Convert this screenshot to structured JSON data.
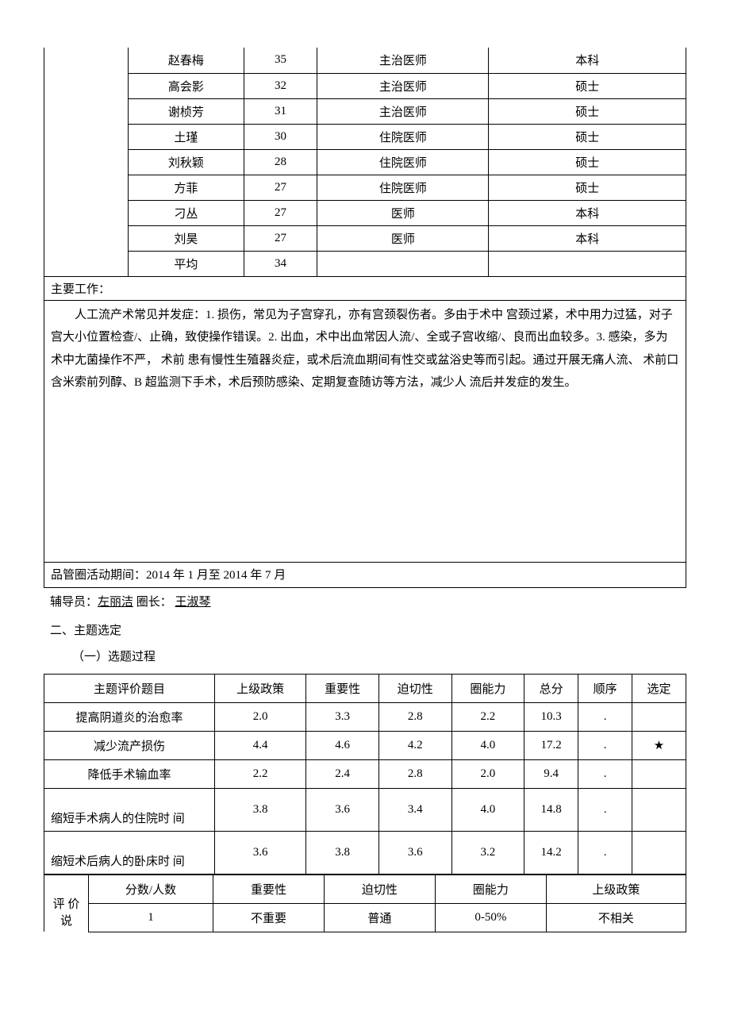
{
  "staff_table": {
    "empty_col_width": 108,
    "rows": [
      {
        "name": "赵春梅",
        "age": "35",
        "title": "主治医师",
        "edu": "本科"
      },
      {
        "name": "高会影",
        "age": "32",
        "title": "主治医师",
        "edu": "硕士"
      },
      {
        "name": "谢桢芳",
        "age": "31",
        "title": "主治医师",
        "edu": "硕士"
      },
      {
        "name": "土瑾",
        "age": "30",
        "title": "住院医师",
        "edu": "硕士"
      },
      {
        "name": "刘秋颖",
        "age": "28",
        "title": "住院医师",
        "edu": "硕士"
      },
      {
        "name": "方菲",
        "age": "27",
        "title": "住院医师",
        "edu": "硕士"
      },
      {
        "name": "刁丛",
        "age": "27",
        "title": "医师",
        "edu": "本科"
      },
      {
        "name": "刘昊",
        "age": "27",
        "title": "医师",
        "edu": "本科"
      },
      {
        "name": "平均",
        "age": "34",
        "title": "",
        "edu": ""
      }
    ]
  },
  "mainwork": {
    "label": "主要工作：",
    "body": "人工流产术常见并发症：1. 损伤，常见为子宫穿孔，亦有宫颈裂伤者。多由于术中 宫颈过紧，术中用力过猛，对子宫大小位置检查/、止确，致使操作错误。2. 出血，术中出血常因人流/、全或子宫收缩/、良而出血较多。3. 感染，多为术中尢菌操作不严， 术前 患有慢性生殖器炎症，或术后流血期间有性交或盆浴史等而引起。通过开展无痛人流、 术前口含米索前列醇、B 超监测下手术，术后预防感染、定期复查随访等方法，减少人 流后并发症的发生。",
    "period": "品管圈活动期间：2014 年 1 月至  2014 年  7 月"
  },
  "staff_info": {
    "tutor_label": "辅导员：",
    "tutor": "左丽洁",
    "leader_label": "  圈长：   ",
    "leader": "王淑琴"
  },
  "section2": "二、主题选定",
  "subsection21": "（一）选题过程",
  "topic_table": {
    "headers": [
      "主题评价题目",
      "上级政策",
      "重要性",
      "迫切性",
      "圈能力",
      "总分",
      "顺序",
      "选定"
    ],
    "rows": [
      {
        "name": "提高阴道炎的治愈率",
        "v": [
          "2.0",
          "3.3",
          "2.8",
          "2.2",
          "10.3",
          "",
          ""
        ],
        "tall": false,
        "order": "."
      },
      {
        "name": "减少流产损伤",
        "v": [
          "4.4",
          "4.6",
          "4.2",
          "4.0",
          "17.2",
          "",
          "★"
        ],
        "tall": false,
        "order": "."
      },
      {
        "name": "降低手术输血率",
        "v": [
          "2.2",
          "2.4",
          "2.8",
          "2.0",
          "9.4",
          "",
          ""
        ],
        "tall": false,
        "order": "."
      },
      {
        "name": "缩短手术病人的住院时  间",
        "v": [
          "3.8",
          "3.6",
          "3.4",
          "4.0",
          "14.8",
          "",
          ""
        ],
        "tall": true,
        "order": "."
      },
      {
        "name": "缩短术后病人的卧床时  间",
        "v": [
          "3.6",
          "3.8",
          "3.6",
          "3.2",
          "14.2",
          "",
          ""
        ],
        "tall": true,
        "order": "."
      }
    ]
  },
  "eval_table": {
    "col0": "评 价 说",
    "header": [
      "分数/人数",
      "重要性",
      "迫切性",
      "圈能力",
      "上级政策"
    ],
    "row": [
      "1",
      "不重要",
      "普通",
      "0-50%",
      "不相关"
    ]
  }
}
